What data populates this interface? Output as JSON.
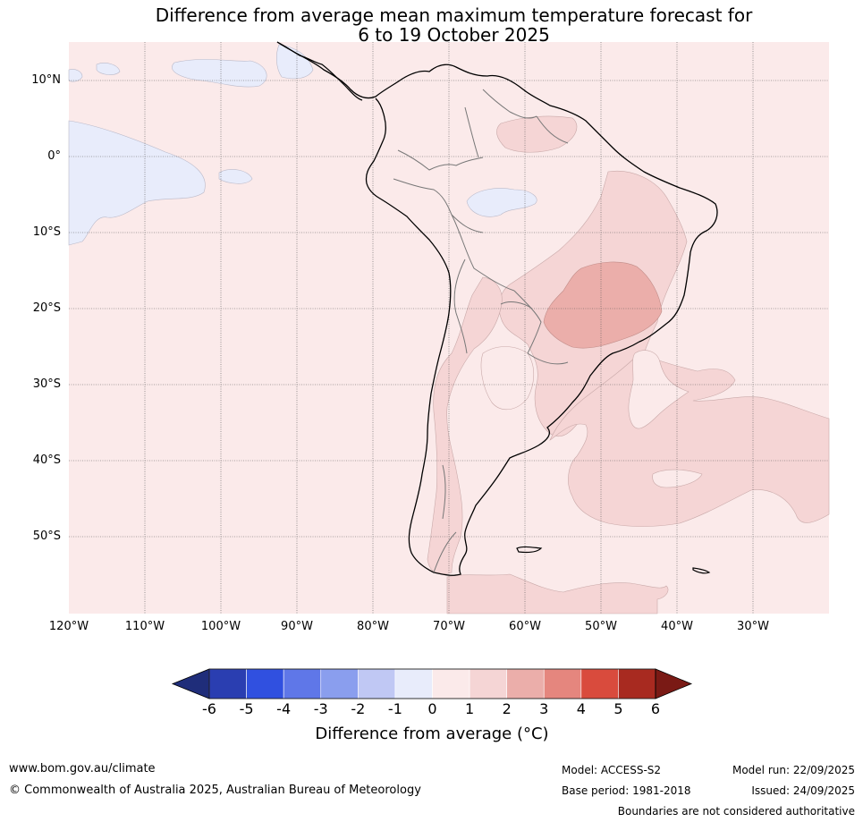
{
  "title": {
    "line1": "Difference from average mean maximum temperature forecast for",
    "line2": "6 to 19 October 2025"
  },
  "map": {
    "region": "South America",
    "latitude_labels": [
      "10°N",
      "0°",
      "10°S",
      "20°S",
      "30°S",
      "40°S",
      "50°S"
    ],
    "longitude_labels": [
      "120°W",
      "110°W",
      "100°W",
      "90°W",
      "80°W",
      "70°W",
      "60°W",
      "50°W",
      "40°W",
      "30°W"
    ],
    "anomaly_areas": [
      {
        "region": "Most of map (ocean and land)",
        "range": "0 to 1"
      },
      {
        "region": "Eastern equatorial Pacific",
        "range": "-1 to 0"
      },
      {
        "region": "Central Amazon",
        "range": "-1 to 0"
      },
      {
        "region": "Eastern and central Brazil",
        "range": "1 to 2"
      },
      {
        "region": "Central Brazil / Paraguay border",
        "range": "2 to 3"
      },
      {
        "region": "Southern Argentina and South Atlantic",
        "range": "1 to 2"
      }
    ]
  },
  "colorbar": {
    "ticks": [
      "-6",
      "-5",
      "-4",
      "-3",
      "-2",
      "-1",
      "0",
      "1",
      "2",
      "3",
      "4",
      "5",
      "6"
    ],
    "colors": [
      "#1f2d7a",
      "#2a3eb1",
      "#3050e0",
      "#5f77e8",
      "#8a9eee",
      "#c0c8f4",
      "#e8ecfb",
      "#fbeaea",
      "#f5d5d5",
      "#ebaeaa",
      "#e5867e",
      "#d94b3d",
      "#a82a20",
      "#7a1a15"
    ],
    "label": "Difference from average (°C)"
  },
  "footer": {
    "website": "www.bom.gov.au/climate",
    "copyright": "© Commonwealth of Australia 2025, Australian Bureau of Meteorology",
    "model": "Model: ACCESS-S2",
    "base_period": "Base period: 1981-2018",
    "model_run": "Model run: 22/09/2025",
    "issued": "Issued: 24/09/2025",
    "disclaimer": "Boundaries are not considered authoritative"
  }
}
